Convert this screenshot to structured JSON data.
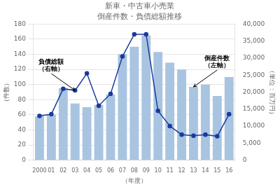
{
  "chart_data": {
    "type": "bar",
    "title": "新車・中古車小売業",
    "subtitle": "倒産件数・負債総額推移",
    "xlabel": "（年度）",
    "ylabel": "（件数）",
    "y2label": "（単位：百万円）",
    "categories": [
      "2000",
      "01",
      "02",
      "03",
      "04",
      "05",
      "06",
      "07",
      "08",
      "09",
      "10",
      "11",
      "12",
      "13",
      "14",
      "15",
      "16"
    ],
    "series": [
      {
        "type": "bar",
        "color": "#a8c4e0",
        "values": [
          58,
          60,
          95,
          75,
          70,
          73,
          87,
          140,
          150,
          165,
          143,
          129,
          120,
          97,
          100,
          85,
          110
        ]
      },
      {
        "type": "line",
        "color": "#1a3a9e",
        "marker": "circle",
        "axis": "y2",
        "values": [
          13000,
          13500,
          21000,
          20500,
          25500,
          16000,
          19500,
          30500,
          37000,
          37000,
          14500,
          10000,
          7500,
          7200,
          7500,
          7000,
          13500
        ]
      }
    ],
    "ylim": [
      0,
      180
    ],
    "yticks": [
      0,
      20,
      40,
      60,
      80,
      100,
      120,
      140,
      160,
      180
    ],
    "y2lim": [
      0,
      40000
    ],
    "y2ticks": [
      0,
      {
        "value": 5000,
        "label": "5,000"
      },
      {
        "value": 10000,
        "label": "10,000"
      },
      {
        "value": 15000,
        "label": "15,000"
      },
      {
        "value": 20000,
        "label": "20,000"
      },
      {
        "value": 25000,
        "label": "25,000"
      },
      {
        "value": 30000,
        "label": "30,000"
      },
      {
        "value": 35000,
        "label": "35,000"
      },
      {
        "value": 40000,
        "label": "40,000"
      }
    ],
    "grid": true,
    "annotations": [
      {
        "text": "負債総額\n（右軸）",
        "x": "03",
        "y": 20500,
        "axis": "y2"
      },
      {
        "text": "倒産件数\n（左軸）",
        "x": "13",
        "y": 97
      }
    ]
  }
}
